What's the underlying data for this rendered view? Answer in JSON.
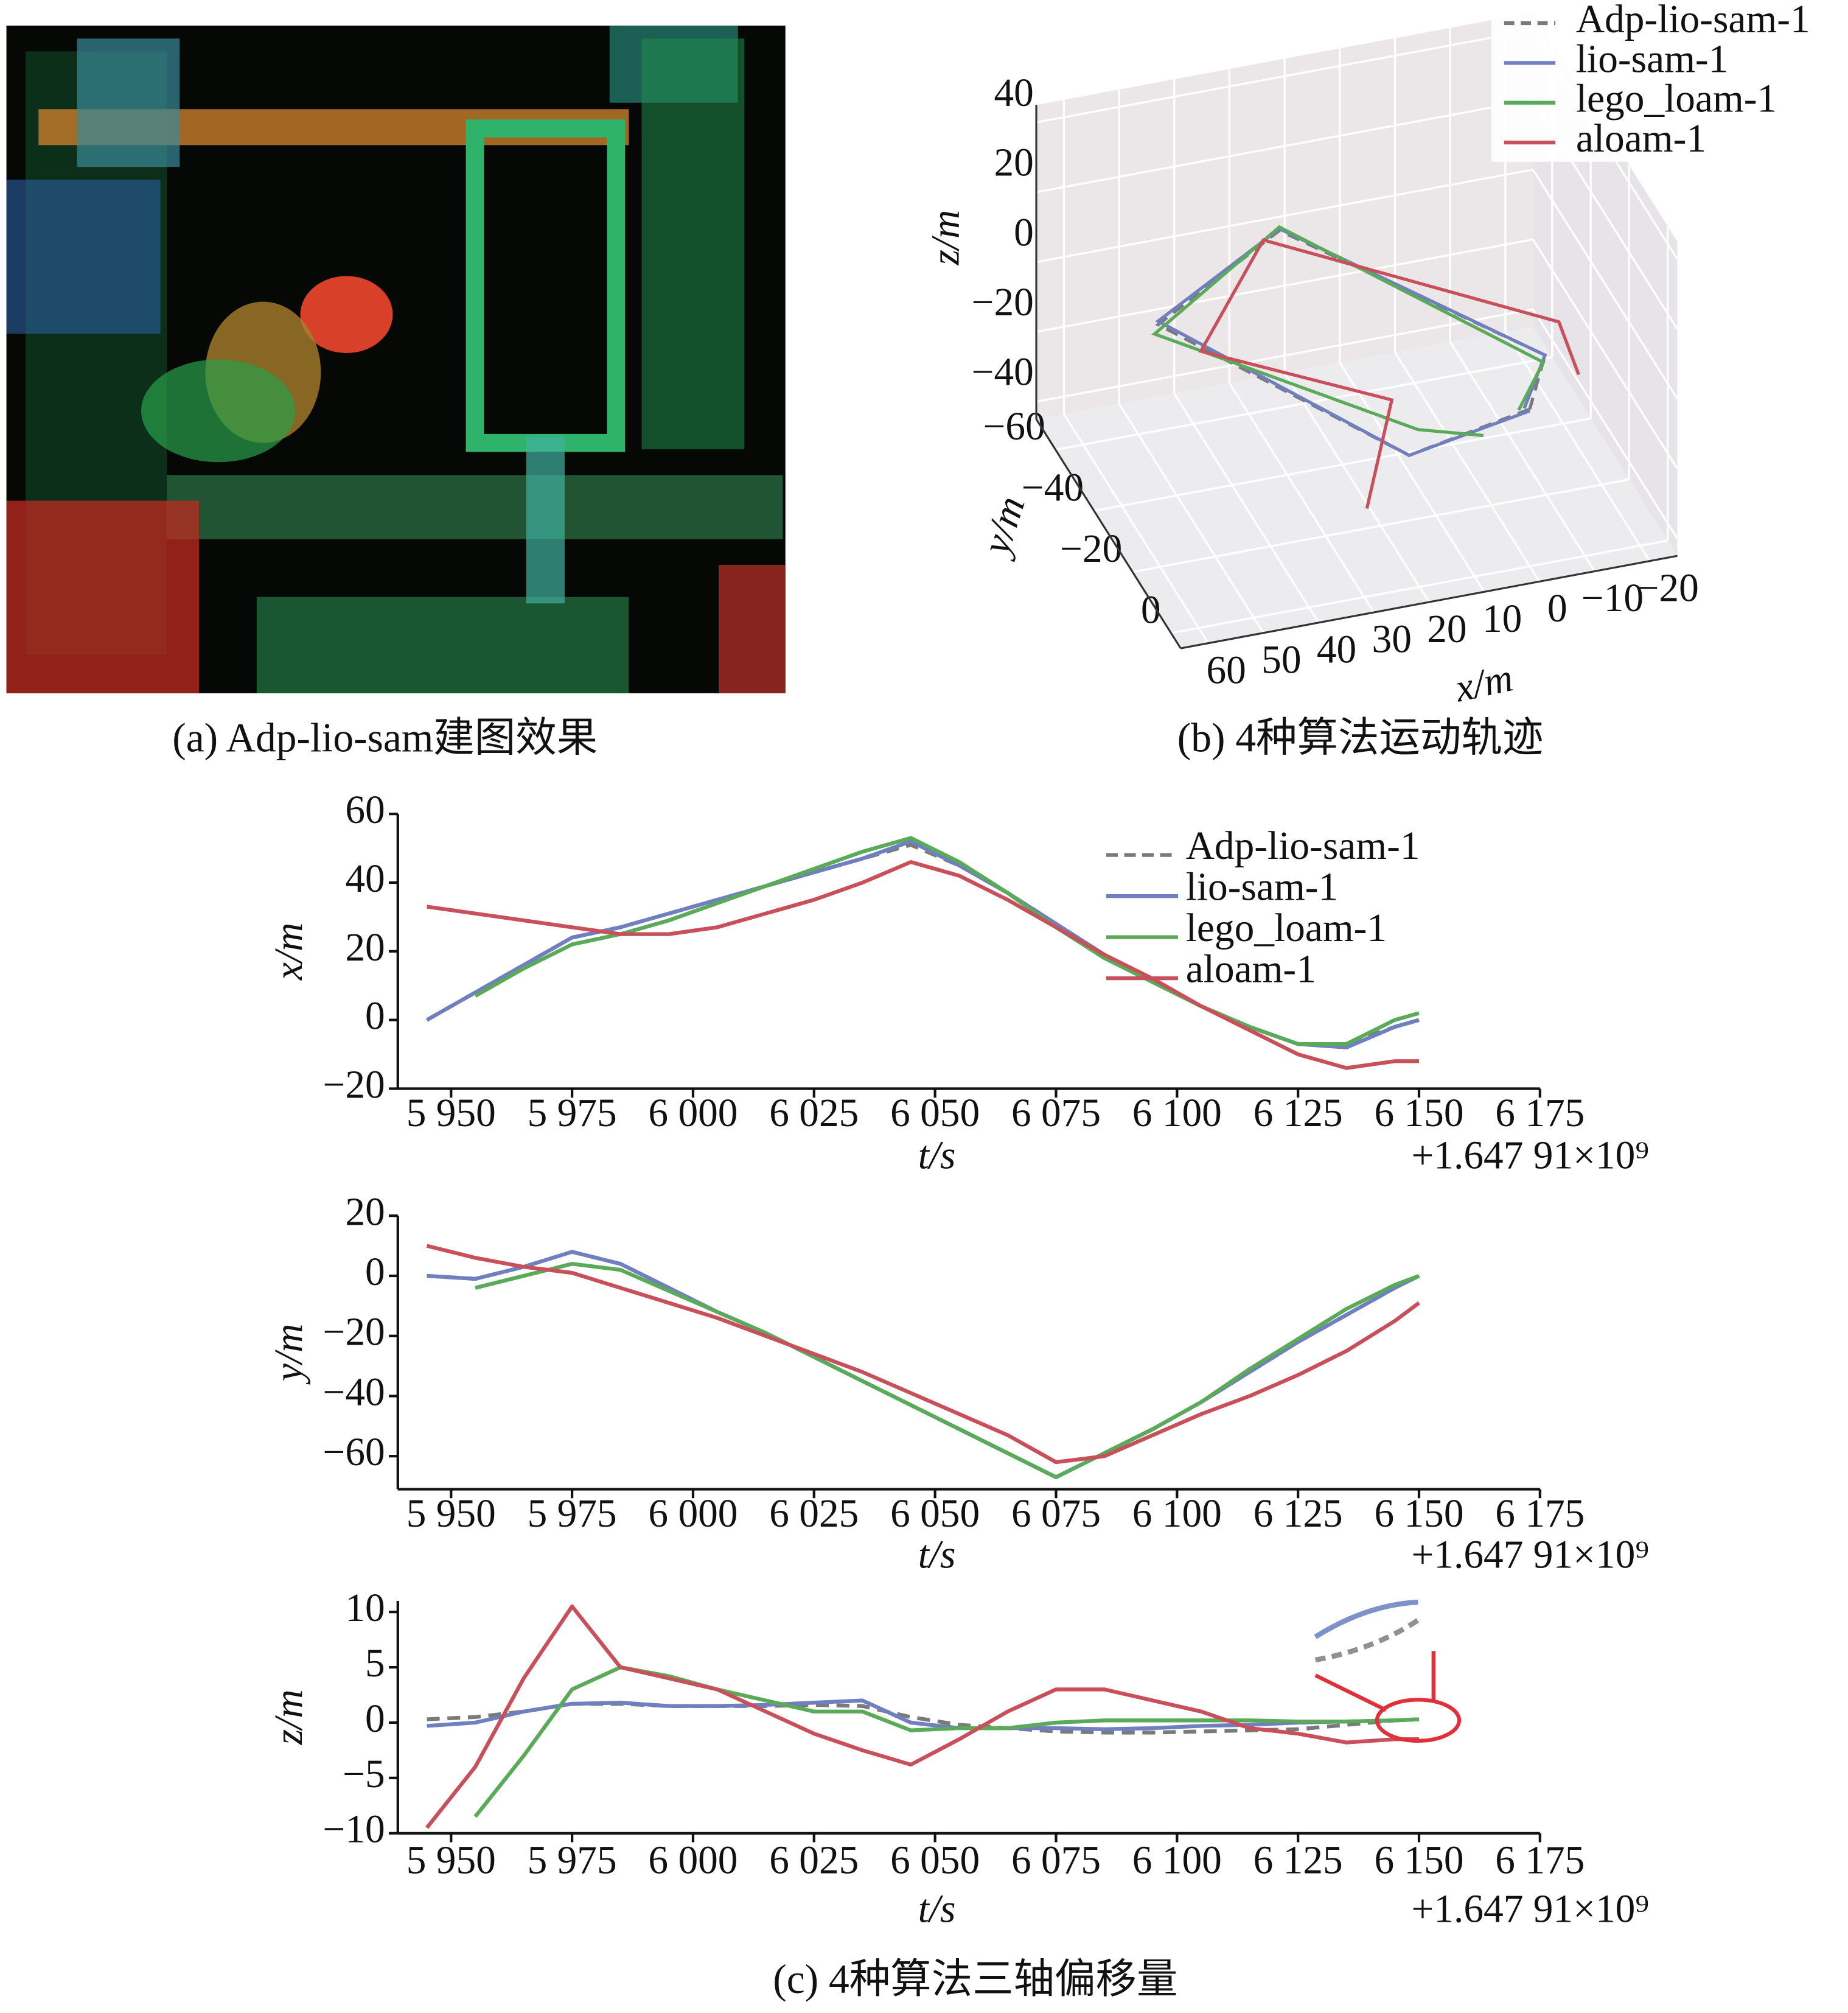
{
  "chart_data": [
    {
      "type": "image",
      "caption": "(a) Adp-lio-sam建图效果"
    },
    {
      "type": "line3d",
      "caption": "(b) 4种算法运动轨迹",
      "xlabel": "x/m",
      "ylabel": "y/m",
      "zlabel": "z/m",
      "xlim": [
        -25,
        65
      ],
      "ylim": [
        -70,
        5
      ],
      "zlim": [
        -45,
        45
      ],
      "xticks": [
        60,
        50,
        40,
        30,
        20,
        10,
        0,
        {
          "value": -10,
          "label": "−10"
        },
        {
          "value": -20,
          "label": "−20"
        }
      ],
      "yticks": [
        {
          "value": -60,
          "label": "−60"
        },
        {
          "value": -40,
          "label": "−40"
        },
        {
          "value": -20,
          "label": "−20"
        },
        0
      ],
      "zticks": [
        40,
        20,
        0,
        {
          "value": -20,
          "label": "−20"
        },
        {
          "value": -40,
          "label": "−40"
        }
      ],
      "grid": true,
      "legend": "upper right",
      "series": [
        {
          "name": "Adp-lio-sam-1",
          "color": "#7a7a7a",
          "dash": true,
          "x": [
            0,
            25,
            52,
            22,
            -8,
            0
          ],
          "y": [
            0,
            9,
            -44,
            -67,
            -15,
            0
          ],
          "z": [
            0,
            2,
            1,
            -1,
            0,
            0
          ]
        },
        {
          "name": "lio-sam-1",
          "color": "#6f7fbf",
          "dash": false,
          "x": [
            0,
            25,
            52,
            22,
            -8,
            1
          ],
          "y": [
            0,
            9,
            -44,
            -67,
            -15,
            0
          ],
          "z": [
            -0.5,
            2,
            2,
            -0.5,
            0,
            0.5
          ]
        },
        {
          "name": "lego_loam-1",
          "color": "#5aaa5a",
          "dash": false,
          "x": [
            7,
            22,
            53,
            22,
            -7,
            2
          ],
          "y": [
            -4,
            5,
            -43,
            -67,
            -13,
            0
          ],
          "z": [
            -9,
            5,
            -0.5,
            0,
            0,
            0.3
          ]
        },
        {
          "name": "aloam-1",
          "color": "#c8505a",
          "dash": false,
          "x": [
            33,
            25,
            46,
            27,
            -14,
            -12
          ],
          "y": [
            10,
            0,
            -39,
            -61,
            -25,
            -9
          ],
          "z": [
            -10,
            10,
            -4,
            3,
            -1,
            -1.5
          ]
        }
      ]
    },
    {
      "type": "line",
      "xlabel": "t/s",
      "ylabel": "x/m",
      "offset_text": "+1.647 91×10⁹",
      "x": [
        5945,
        5955,
        5965,
        5975,
        5985,
        5995,
        6005,
        6015,
        6025,
        6035,
        6045,
        6055,
        6065,
        6075,
        6085,
        6095,
        6105,
        6115,
        6125,
        6135,
        6145,
        6150
      ],
      "xlim": [
        5939,
        6175
      ],
      "ylim": [
        -20,
        60
      ],
      "xticks": [
        {
          "value": 5950,
          "label": "5 950"
        },
        {
          "value": 5975,
          "label": "5 975"
        },
        {
          "value": 6000,
          "label": "6 000"
        },
        {
          "value": 6025,
          "label": "6 025"
        },
        {
          "value": 6050,
          "label": "6 050"
        },
        {
          "value": 6075,
          "label": "6 075"
        },
        {
          "value": 6100,
          "label": "6 100"
        },
        {
          "value": 6125,
          "label": "6 125"
        },
        {
          "value": 6150,
          "label": "6 150"
        },
        {
          "value": 6175,
          "label": "6 175"
        }
      ],
      "yticks": [
        60,
        40,
        20,
        0,
        {
          "value": -20,
          "label": "−20"
        }
      ],
      "legend": "upper right",
      "series": [
        {
          "name": "Adp-lio-sam-1",
          "color": "#7a7a7a",
          "dash": true,
          "values": [
            0,
            8,
            16,
            24,
            27,
            31,
            35,
            39,
            43,
            47,
            51,
            45,
            37,
            28,
            19,
            11,
            4,
            -2,
            -7,
            -7,
            -2,
            0
          ]
        },
        {
          "name": "lio-sam-1",
          "color": "#6f7fbf",
          "dash": false,
          "values": [
            0,
            8,
            16,
            24,
            27,
            31,
            35,
            39,
            43,
            47,
            52,
            45,
            37,
            28,
            19,
            11,
            4,
            -2,
            -7,
            -8,
            -2,
            0
          ]
        },
        {
          "name": "lego_loam-1",
          "color": "#5aaa5a",
          "dash": false,
          "values": [
            null,
            7,
            15,
            22,
            25,
            29,
            34,
            39,
            44,
            49,
            53,
            46,
            37,
            27,
            18,
            11,
            4,
            -2,
            -7,
            -7,
            0,
            2
          ]
        },
        {
          "name": "aloam-1",
          "color": "#c8505a",
          "dash": false,
          "values": [
            33,
            31,
            29,
            27,
            25,
            25,
            27,
            31,
            35,
            40,
            46,
            42,
            35,
            27,
            19,
            12,
            4,
            -3,
            -10,
            -14,
            -12,
            -12
          ]
        }
      ]
    },
    {
      "type": "line",
      "xlabel": "t/s",
      "ylabel": "y/m",
      "offset_text": "+1.647 91×10⁹",
      "x": [
        5945,
        5955,
        5965,
        5975,
        5985,
        5995,
        6005,
        6015,
        6025,
        6035,
        6045,
        6055,
        6065,
        6075,
        6085,
        6095,
        6105,
        6115,
        6125,
        6135,
        6145,
        6150
      ],
      "xlim": [
        5939,
        6175
      ],
      "ylim": [
        -71,
        20
      ],
      "xticks": [
        {
          "value": 5950,
          "label": "5 950"
        },
        {
          "value": 5975,
          "label": "5 975"
        },
        {
          "value": 6000,
          "label": "6 000"
        },
        {
          "value": 6025,
          "label": "6 025"
        },
        {
          "value": 6050,
          "label": "6 050"
        },
        {
          "value": 6075,
          "label": "6 075"
        },
        {
          "value": 6100,
          "label": "6 100"
        },
        {
          "value": 6125,
          "label": "6 125"
        },
        {
          "value": 6150,
          "label": "6 150"
        },
        {
          "value": 6175,
          "label": "6 175"
        }
      ],
      "yticks": [
        20,
        0,
        {
          "value": -20,
          "label": "−20"
        },
        {
          "value": -40,
          "label": "−40"
        },
        {
          "value": -60,
          "label": "−60"
        }
      ],
      "series": [
        {
          "color": "#7a7a7a",
          "dash": true,
          "values": [
            0,
            -1,
            3,
            8,
            4,
            -4,
            -12,
            -19,
            -27,
            -35,
            -43,
            -51,
            -59,
            -67,
            -59,
            -51,
            -42,
            -32,
            -22,
            -13,
            -4,
            0
          ]
        },
        {
          "color": "#6f7fbf",
          "dash": false,
          "values": [
            0,
            -1,
            3,
            8,
            4,
            -4,
            -12,
            -19,
            -27,
            -35,
            -43,
            -51,
            -59,
            -67,
            -59,
            -51,
            -42,
            -32,
            -22,
            -13,
            -4,
            0
          ]
        },
        {
          "color": "#5aaa5a",
          "dash": false,
          "values": [
            null,
            -4,
            0,
            4,
            2,
            -5,
            -12,
            -19,
            -27,
            -35,
            -43,
            -51,
            -59,
            -67,
            -59,
            -51,
            -42,
            -31,
            -21,
            -11,
            -3,
            0
          ]
        },
        {
          "color": "#c8505a",
          "dash": false,
          "values": [
            10,
            6,
            3,
            1,
            -4,
            -9,
            -14,
            -20,
            -26,
            -32,
            -39,
            -46,
            -53,
            -62,
            -60,
            -53,
            -46,
            -40,
            -33,
            -25,
            -15,
            -9
          ]
        }
      ]
    },
    {
      "type": "line",
      "xlabel": "t/s",
      "ylabel": "z/m",
      "offset_text": "+1.647 91×10⁹",
      "caption": "(c) 4种算法三轴偏移量",
      "x": [
        5945,
        5955,
        5965,
        5975,
        5985,
        5995,
        6005,
        6015,
        6025,
        6035,
        6045,
        6055,
        6065,
        6075,
        6085,
        6095,
        6105,
        6115,
        6125,
        6135,
        6145,
        6150
      ],
      "xlim": [
        5939,
        6175
      ],
      "ylim": [
        -10,
        11
      ],
      "xticks": [
        {
          "value": 5950,
          "label": "5 950"
        },
        {
          "value": 5975,
          "label": "5 975"
        },
        {
          "value": 6000,
          "label": "6 000"
        },
        {
          "value": 6025,
          "label": "6 025"
        },
        {
          "value": 6050,
          "label": "6 050"
        },
        {
          "value": 6075,
          "label": "6 075"
        },
        {
          "value": 6100,
          "label": "6 100"
        },
        {
          "value": 6125,
          "label": "6 125"
        },
        {
          "value": 6150,
          "label": "6 150"
        },
        {
          "value": 6175,
          "label": "6 175"
        }
      ],
      "yticks": [
        10,
        5,
        0,
        {
          "value": -5,
          "label": "−5"
        },
        {
          "value": -10,
          "label": "−10"
        }
      ],
      "series": [
        {
          "color": "#7a7a7a",
          "dash": true,
          "values": [
            0.3,
            0.5,
            1,
            1.7,
            1.7,
            1.5,
            1.5,
            1.5,
            1.6,
            1.5,
            0.5,
            -0.2,
            -0.5,
            -0.8,
            -0.9,
            -0.9,
            -0.8,
            -0.7,
            -0.6,
            -0.2,
            0.2,
            0.3
          ]
        },
        {
          "color": "#6f7fbf",
          "dash": false,
          "values": [
            -0.3,
            0,
            1,
            1.7,
            1.8,
            1.5,
            1.5,
            1.6,
            1.8,
            2,
            0,
            -0.5,
            -0.5,
            -0.5,
            -0.6,
            -0.5,
            -0.3,
            -0.2,
            0,
            0.1,
            0.2,
            0.3
          ]
        },
        {
          "color": "#5aaa5a",
          "dash": false,
          "values": [
            null,
            -8.5,
            -3,
            3,
            5,
            4.2,
            3,
            2,
            1,
            1,
            -0.7,
            -0.5,
            -0.5,
            0,
            0.2,
            0.2,
            0.2,
            0.2,
            0.1,
            0.1,
            0.2,
            0.3
          ]
        },
        {
          "color": "#c8505a",
          "dash": false,
          "values": [
            -9.5,
            -4,
            4,
            10.5,
            5,
            4,
            3,
            1,
            -1,
            -2.5,
            -3.8,
            -1.5,
            1,
            3,
            3,
            2,
            1,
            -0.5,
            -1,
            -1.8,
            -1.5,
            -1.5
          ]
        }
      ]
    }
  ]
}
